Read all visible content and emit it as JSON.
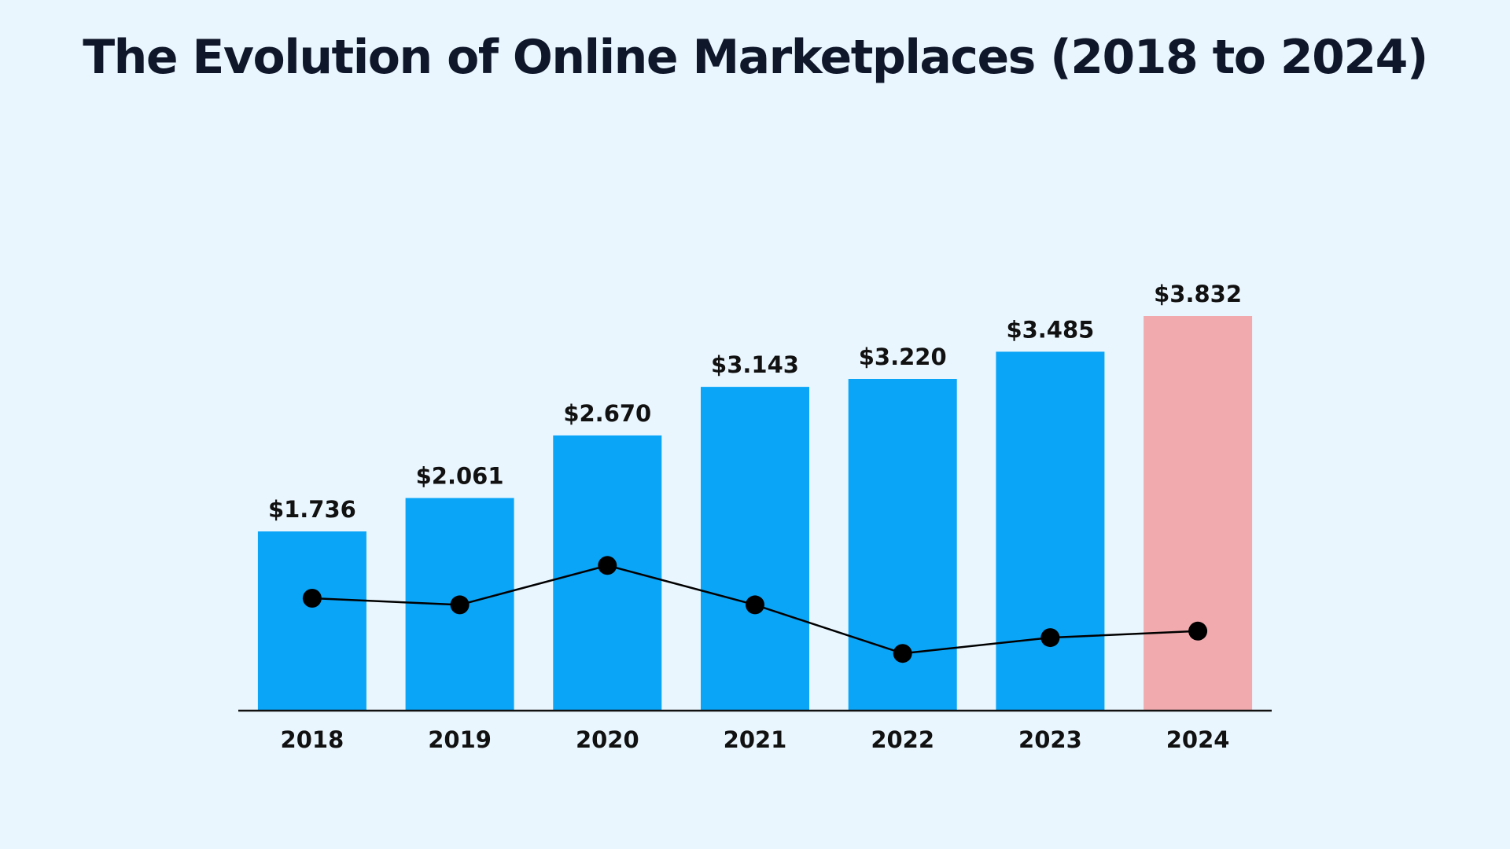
{
  "chart_data": {
    "type": "bar",
    "title": "The Evolution of Online Marketplaces (2018 to 2024)",
    "xlabel": "",
    "ylabel": "",
    "categories": [
      "2018",
      "2019",
      "2020",
      "2021",
      "2022",
      "2023",
      "2024"
    ],
    "values": [
      1.736,
      2.061,
      2.67,
      3.143,
      3.22,
      3.485,
      3.832
    ],
    "value_labels": [
      "$1.736",
      "$2.061",
      "$2.670",
      "$3.143",
      "$3.220",
      "$3.485",
      "$3.832"
    ],
    "ylim": [
      0,
      3.832
    ],
    "grid": false,
    "legend": "none",
    "line_overlay": {
      "type": "line",
      "values": [
        8.5,
        8.0,
        11.0,
        8.0,
        4.3,
        5.5,
        6.0
      ],
      "ylim": [
        0,
        30
      ],
      "color": "#000000"
    },
    "colors": {
      "bar": "#0aa5f7",
      "highlight_bar": "#f1aaad",
      "highlight_category": "2024",
      "axis": "#111111",
      "background": "#eaf6fe"
    }
  }
}
